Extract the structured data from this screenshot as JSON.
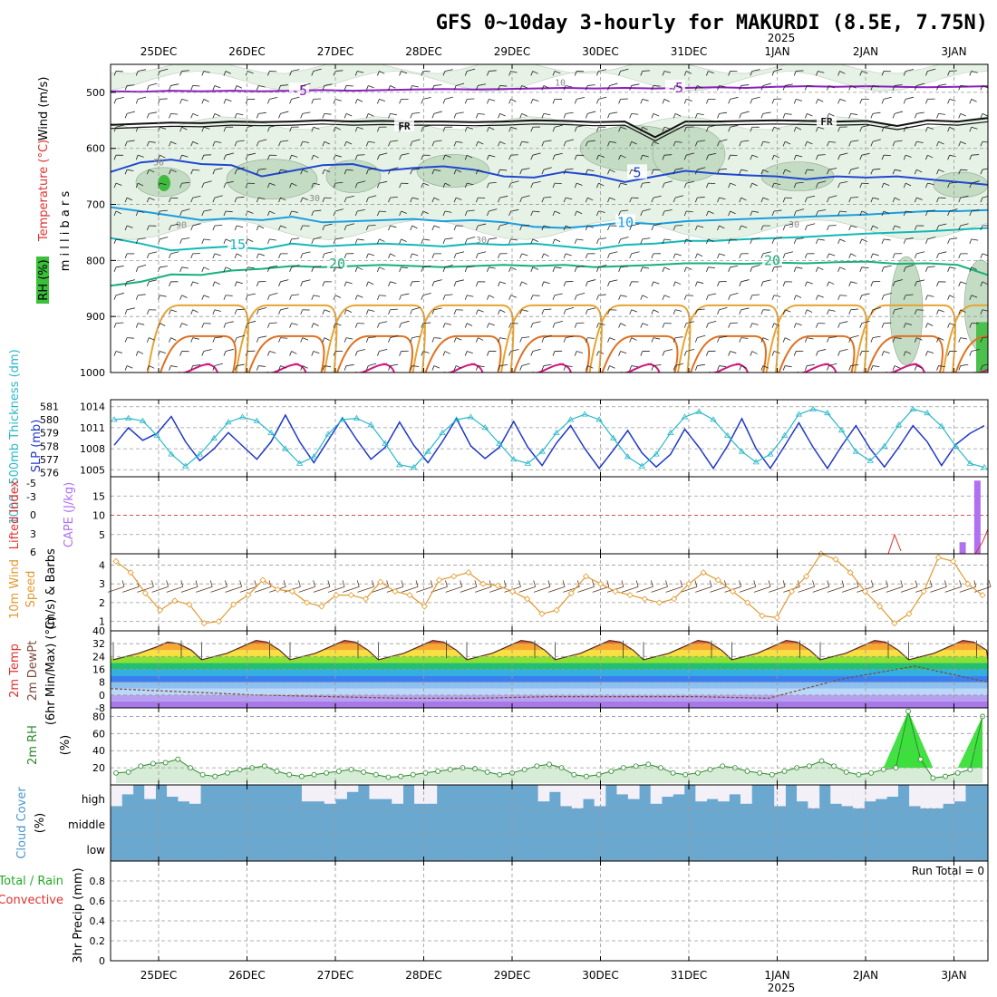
{
  "title": "GFS 0~10day 3-hourly for MAKURDI (8.5E, 7.75N)",
  "year_label": "2025",
  "colors": {
    "purple": "#8c1fbf",
    "black": "#111111",
    "blue": "#2048d0",
    "blue2": "#1a9ee0",
    "teal": "#14b8b8",
    "green": "#17b07a",
    "orange1": "#e8a432",
    "orange2": "#e07020",
    "magenta": "#d01880",
    "rh_light": "#e6f2e6",
    "rh_mid": "#c3dcc3",
    "rh_dark": "#9fb8a0",
    "slp": "#2038c8",
    "thick": "#2ab8c8",
    "cape": "#b070f0",
    "li": "#e03030",
    "wind10": "#e09a30",
    "barb": "#603820",
    "rh2": "#2a8a2a",
    "rh2_fill": "#d6ecd6",
    "rh2_green": "#22dd22",
    "cloud_blue": "#6aa8d0",
    "cloud_white": "#f4f0f8"
  },
  "chart_data": [
    {
      "id": "upper_air",
      "type": "contour",
      "ylabel": "millibars",
      "vlabel_parts": [
        "Wind (m/s)",
        "Temperature (°C)",
        "RH (%)"
      ],
      "yticks": [
        500,
        600,
        700,
        800,
        900,
        1000
      ],
      "ylim": [
        450,
        1000
      ],
      "temperature_contours": [
        {
          "label": "-5",
          "color": "purple",
          "values": [
            498,
            499,
            497,
            498,
            497,
            498,
            497,
            496,
            497,
            496,
            495,
            494,
            495,
            494,
            493,
            492,
            493,
            492,
            493,
            492,
            491,
            492,
            490,
            489,
            490,
            489,
            490,
            491,
            490,
            489
          ]
        },
        {
          "label": "FR",
          "color": "black",
          "values": [
            558,
            556,
            554,
            555,
            552,
            553,
            552,
            550,
            552,
            551,
            552,
            552,
            553,
            552,
            550,
            551,
            553,
            552,
            580,
            552,
            552,
            551,
            550,
            551,
            552,
            551,
            560,
            550,
            552,
            546
          ]
        },
        {
          "label": "5",
          "color": "blue",
          "values": [
            642,
            625,
            620,
            628,
            630,
            650,
            640,
            630,
            628,
            640,
            635,
            632,
            638,
            650,
            652,
            642,
            648,
            660,
            650,
            640,
            645,
            648,
            650,
            655,
            650,
            652,
            650,
            655,
            660,
            665
          ]
        },
        {
          "label": "10",
          "color": "blue2",
          "values": [
            705,
            712,
            720,
            728,
            725,
            728,
            722,
            732,
            730,
            728,
            726,
            730,
            728,
            732,
            740,
            742,
            738,
            732,
            735,
            730,
            728,
            726,
            724,
            722,
            720,
            718,
            715,
            712,
            712,
            710
          ]
        },
        {
          "label": "15",
          "color": "teal",
          "values": [
            760,
            770,
            782,
            778,
            775,
            780,
            770,
            775,
            772,
            770,
            772,
            775,
            770,
            772,
            770,
            775,
            780,
            772,
            770,
            765,
            765,
            762,
            760,
            758,
            755,
            752,
            750,
            748,
            745,
            742
          ]
        },
        {
          "label": "20",
          "color": "green",
          "values": [
            845,
            838,
            825,
            826,
            818,
            815,
            810,
            812,
            810,
            808,
            810,
            812,
            810,
            808,
            810,
            808,
            812,
            810,
            808,
            805,
            805,
            806,
            804,
            805,
            803,
            802,
            806,
            805,
            808,
            826
          ]
        }
      ],
      "rh_labels": [
        "10",
        "50",
        "30",
        "90",
        "30",
        "30"
      ]
    },
    {
      "id": "slp_thickness",
      "type": "line",
      "vlabel_parts": [
        "1000~500mb Thickness (dm)",
        "SLP (mb)"
      ],
      "left_ticks": [
        581,
        580,
        579,
        578,
        577,
        576
      ],
      "right_ticks": [
        1014,
        1011,
        1008,
        1005
      ],
      "ylim_slp": [
        1004,
        1015
      ],
      "series": [
        {
          "name": "SLP",
          "axis": "right",
          "values": [
            1008.5,
            1011.0,
            1009.2,
            1010.2,
            1012.6,
            1009.0,
            1006.3,
            1008.0,
            1010.3,
            1008.4,
            1006.5,
            1009.0,
            1012.8,
            1009.0,
            1006.0,
            1009.2,
            1012.4,
            1009.3,
            1006.5,
            1008.2,
            1011.8,
            1008.5,
            1006.0,
            1009.0,
            1012.3,
            1008.4,
            1006.6,
            1008.2,
            1011.9,
            1008.2,
            1005.6,
            1008.8,
            1011.3,
            1008.0,
            1005.2,
            1007.8,
            1010.6,
            1007.4,
            1005.4,
            1007.2,
            1010.8,
            1008.2,
            1005.2,
            1008.4,
            1012.3,
            1008.0,
            1005.2,
            1008.4,
            1011.7,
            1008.2,
            1005.2,
            1008.4,
            1011.3,
            1008.0,
            1005.4,
            1008.2,
            1011.3,
            1009.0,
            1005.6,
            1008.6,
            1010.2,
            1011.3
          ]
        },
        {
          "name": "Thickness",
          "axis": "left",
          "values": [
            580.0,
            580.1,
            579.9,
            578.8,
            577.4,
            576.5,
            577.4,
            578.6,
            579.8,
            580.2,
            579.9,
            579.0,
            577.8,
            576.7,
            577.2,
            578.9,
            580.0,
            580.1,
            579.6,
            578.2,
            576.6,
            576.4,
            577.6,
            579.0,
            580.0,
            580.2,
            579.4,
            578.2,
            577.0,
            576.7,
            577.6,
            579.0,
            580.0,
            580.4,
            580.0,
            578.6,
            577.2,
            576.5,
            577.4,
            579.0,
            580.2,
            580.6,
            580.0,
            578.8,
            577.6,
            576.8,
            577.4,
            578.8,
            580.4,
            580.8,
            580.5,
            579.2,
            577.6,
            576.9,
            578.0,
            579.6,
            580.8,
            580.5,
            579.5,
            578.0,
            576.7,
            576.4
          ]
        }
      ]
    },
    {
      "id": "li_cape",
      "type": "bar",
      "vlabel_parts": [
        "Lifted Index",
        "CAPE (J/kg)"
      ],
      "left_ticks": [
        "-5",
        "-3",
        "0",
        "3",
        "6"
      ],
      "right_ticks": [
        15,
        10,
        5
      ],
      "cape_bars": [
        {
          "x": 57.5,
          "value": 3
        },
        {
          "x": 58.5,
          "value": 19
        }
      ],
      "li_zero_line": 0
    },
    {
      "id": "wind10",
      "type": "line",
      "vlabel_parts": [
        "10m Wind Speed (m/s) & Barbs"
      ],
      "yticks": [
        4,
        3,
        2,
        1
      ],
      "ylim": [
        0.5,
        4.6
      ],
      "values": [
        4.2,
        3.6,
        2.5,
        1.6,
        2.1,
        1.9,
        0.9,
        1.0,
        1.9,
        2.4,
        3.2,
        2.7,
        2.6,
        2.0,
        1.8,
        2.4,
        2.4,
        2.2,
        3.1,
        2.6,
        2.4,
        1.8,
        3.2,
        3.4,
        3.6,
        3.0,
        2.9,
        2.6,
        2.2,
        1.4,
        1.6,
        2.5,
        3.4,
        3.0,
        2.6,
        2.4,
        2.2,
        2.0,
        2.2,
        3.0,
        3.6,
        3.2,
        2.6,
        2.0,
        1.3,
        1.2,
        2.6,
        3.4,
        4.6,
        4.3,
        3.6,
        2.6,
        1.8,
        0.9,
        1.4,
        2.6,
        4.4,
        4.2,
        3.0,
        2.4
      ]
    },
    {
      "id": "temp2m",
      "type": "area",
      "vlabel_parts": [
        "2m Temp",
        "2m DewPt",
        "(6hr Min/Max) (°C)"
      ],
      "yticks": [
        40,
        32,
        24,
        16,
        8,
        0,
        -8
      ],
      "ylim": [
        -8,
        40
      ],
      "daily_max": [
        33,
        34,
        34,
        34,
        34,
        34,
        34,
        34,
        34,
        34
      ],
      "daily_min": [
        22,
        22,
        22,
        22,
        22,
        22,
        22,
        22,
        22,
        22
      ],
      "dewpoint": [
        4,
        2,
        0,
        -1,
        -2,
        -2,
        -1,
        -1,
        -1,
        -2,
        10,
        18,
        8
      ]
    },
    {
      "id": "rh2m",
      "type": "area",
      "vlabel_parts": [
        "2m RH",
        "(%)"
      ],
      "yticks": [
        80,
        60,
        40,
        20
      ],
      "ylim": [
        0,
        90
      ],
      "values": [
        14,
        15,
        22,
        25,
        26,
        30,
        20,
        12,
        10,
        14,
        18,
        20,
        22,
        16,
        12,
        10,
        12,
        14,
        16,
        18,
        15,
        12,
        9,
        10,
        12,
        14,
        16,
        18,
        20,
        19,
        15,
        12,
        14,
        18,
        22,
        24,
        20,
        12,
        10,
        12,
        16,
        20,
        22,
        24,
        20,
        14,
        12,
        14,
        18,
        22,
        20,
        16,
        14,
        12,
        16,
        20,
        22,
        28,
        22,
        15,
        12,
        14,
        18,
        20,
        86,
        30,
        8,
        10,
        14,
        18,
        80
      ]
    },
    {
      "id": "cloud",
      "type": "bar",
      "vlabel_parts": [
        "Cloud Cover",
        "(%)"
      ],
      "levels": [
        "high",
        "middle",
        "low"
      ],
      "high_cover": [
        0.9,
        0.4,
        0.0,
        0.6,
        0.0,
        0.5,
        0.7,
        0.8,
        0.0,
        0.0,
        0.0,
        0.0,
        0.0,
        0.0,
        0.0,
        0.0,
        0.0,
        0.7,
        0.7,
        0.8,
        0.6,
        0.3,
        0.0,
        0.6,
        0.6,
        0.8,
        0.0,
        0.8,
        0.8,
        0.0,
        0.0,
        0.0,
        0.0,
        0.0,
        0.0,
        0.0,
        0.0,
        0.0,
        0.0,
        0.0,
        0.0,
        0.0,
        0.0,
        0.0,
        0.0,
        0.0,
        0.0,
        0.0,
        0.0,
        0.0,
        0.0,
        0.0,
        0.0,
        0.0,
        0.0,
        0.0,
        0.0,
        0.0,
        0.0,
        0.0,
        0.0,
        0.0,
        0.0,
        0.0,
        0.0,
        0.0,
        0.0,
        0.0,
        0.0,
        0.0,
        0.0,
        0.0,
        0.0,
        0.0,
        0.0,
        0.0,
        0.0,
        0.0
      ],
      "high_cover_late": [
        0.0,
        0.0,
        0.0,
        0.0,
        0.7,
        0.3,
        0.9,
        1.0,
        0.6,
        0.9,
        0.0,
        0.4,
        0.6,
        0.0,
        0.8,
        0.5,
        0.4,
        0.0,
        0.7,
        0.6,
        0.7,
        0.4,
        0.8,
        0.0,
        0.0,
        0.9,
        0.0,
        0.7,
        1.0,
        0.0,
        0.8,
        0.9,
        1.0,
        0.7,
        0.6,
        0.5,
        0.0,
        0.9,
        1.0,
        1.0,
        0.8,
        0.7,
        0.0,
        0.0
      ]
    },
    {
      "id": "precip",
      "type": "bar",
      "vlabel_parts": [
        "3hr Precip (mm)",
        "Total / Rain",
        "Convective"
      ],
      "yticks": [
        "0.8",
        "0.6",
        "0.4",
        "0.2",
        "0"
      ],
      "ylim": [
        0,
        1
      ],
      "annotation": "Run Total = 0",
      "values": []
    }
  ],
  "dates": [
    "25DEC",
    "26DEC",
    "27DEC",
    "28DEC",
    "29DEC",
    "30DEC",
    "31DEC",
    "1JAN",
    "2JAN",
    "3JAN"
  ],
  "bottom_year": "2025"
}
